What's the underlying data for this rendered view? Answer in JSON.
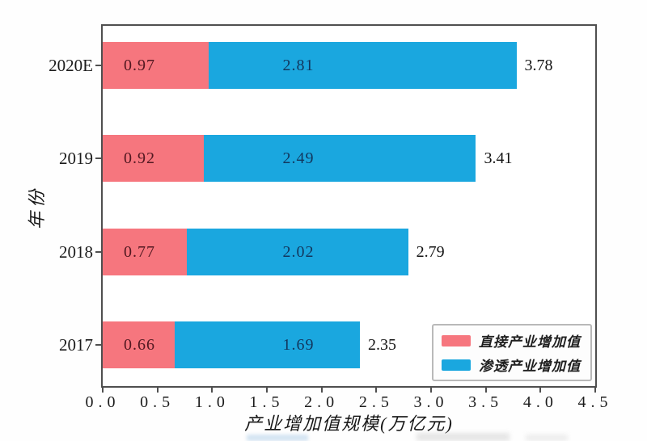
{
  "chart_data": {
    "type": "bar",
    "orientation": "horizontal",
    "stacked": true,
    "xlabel": "产业增加值规模(万亿元)",
    "ylabel": "年份",
    "categories": [
      "2020E",
      "2019",
      "2018",
      "2017"
    ],
    "series": [
      {
        "name": "直接产业增加值",
        "color": "#f6767e",
        "values": [
          0.97,
          0.92,
          0.77,
          0.66
        ]
      },
      {
        "name": "渗透产业增加值",
        "color": "#1aa7df",
        "values": [
          2.81,
          2.49,
          2.02,
          1.69
        ]
      }
    ],
    "totals": [
      3.78,
      3.41,
      2.79,
      2.35
    ],
    "xlim": [
      0,
      4.5
    ],
    "xticks": [
      "0.0",
      "0.5",
      "1.0",
      "1.5",
      "2.0",
      "2.5",
      "3.0",
      "3.5",
      "4.0",
      "4.5"
    ],
    "legend": {
      "position": "lower right"
    },
    "grid": false,
    "axis_color": "#4f4f4f",
    "value_label_colors": {
      "on_pink": "#521821",
      "on_blue": "#12375e"
    }
  }
}
